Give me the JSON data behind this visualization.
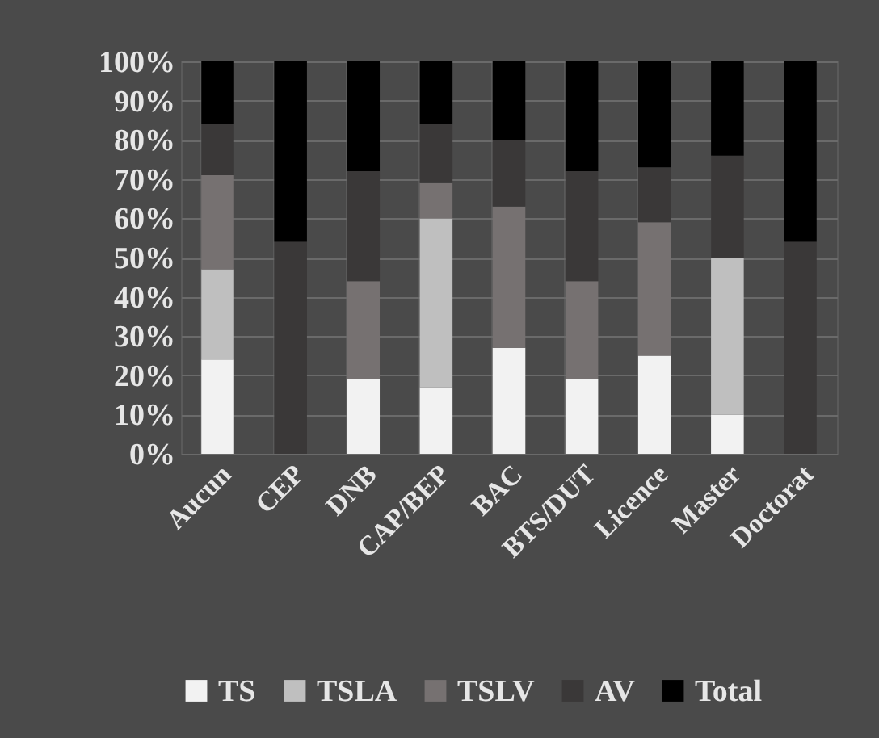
{
  "chart_data": {
    "type": "bar",
    "stacked": true,
    "categories": [
      "Aucun",
      "CEP",
      "DNB",
      "CAP/BEP",
      "BAC",
      "BTS/DUT",
      "Licence",
      "Master",
      "Doctorat"
    ],
    "series": [
      {
        "name": "TS",
        "color": "#f2f2f2",
        "values": [
          24,
          0,
          19,
          17,
          27,
          19,
          25,
          10,
          0
        ]
      },
      {
        "name": "TSLA",
        "color": "#bfbfbf",
        "values": [
          23,
          0,
          0,
          43,
          0,
          0,
          0,
          40,
          0
        ]
      },
      {
        "name": "TSLV",
        "color": "#767171",
        "values": [
          24,
          0,
          25,
          9,
          36,
          25,
          34,
          0,
          0
        ]
      },
      {
        "name": "AV",
        "color": "#3a3838",
        "values": [
          13,
          54,
          28,
          15,
          17,
          28,
          14,
          26,
          54
        ]
      },
      {
        "name": "Total",
        "color": "#000000",
        "values": [
          16,
          46,
          28,
          16,
          20,
          28,
          27,
          24,
          46
        ]
      }
    ],
    "ylim": [
      0,
      100
    ],
    "yticks": [
      {
        "value": 0,
        "label": "0%"
      },
      {
        "value": 10,
        "label": "10%"
      },
      {
        "value": 20,
        "label": "20%"
      },
      {
        "value": 30,
        "label": "30%"
      },
      {
        "value": 40,
        "label": "40%"
      },
      {
        "value": 50,
        "label": "50%"
      },
      {
        "value": 60,
        "label": "60%"
      },
      {
        "value": 70,
        "label": "70%"
      },
      {
        "value": 80,
        "label": "80%"
      },
      {
        "value": 90,
        "label": "90%"
      },
      {
        "value": 100,
        "label": "100%"
      }
    ],
    "grid": true,
    "legend": "bottom"
  }
}
